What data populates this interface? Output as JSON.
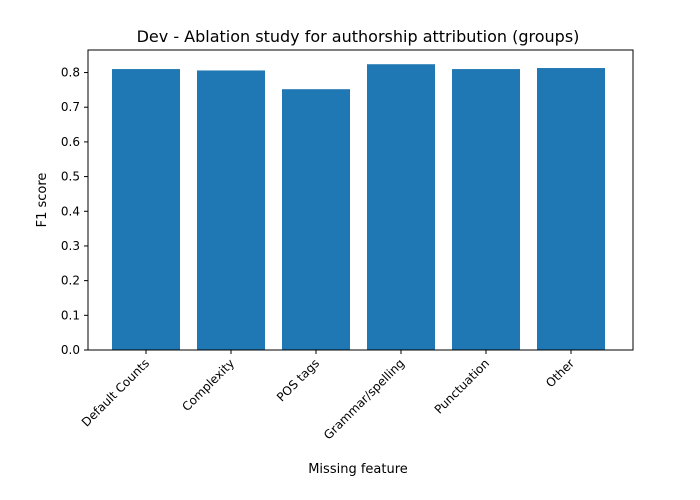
{
  "chart_data": {
    "type": "bar",
    "title": "Dev - Ablation study for authorship attribution (groups)",
    "xlabel": "Missing feature",
    "ylabel": "F1 score",
    "categories": [
      "Default Counts",
      "Complexity",
      "POS tags",
      "Grammar/spelling",
      "Punctuation",
      "Other"
    ],
    "values": [
      0.81,
      0.806,
      0.752,
      0.824,
      0.81,
      0.813
    ],
    "ylim": [
      0,
      0.865
    ],
    "yticks": [
      "0.0",
      "0.1",
      "0.2",
      "0.3",
      "0.4",
      "0.5",
      "0.6",
      "0.7",
      "0.8"
    ],
    "bar_color": "#1f77b4",
    "grid": false,
    "legend": "none"
  }
}
